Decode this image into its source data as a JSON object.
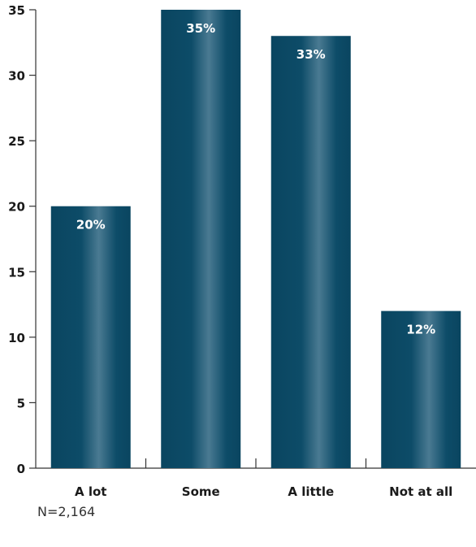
{
  "chart_data": {
    "type": "bar",
    "categories": [
      "A lot",
      "Some",
      "A little",
      "Not at all"
    ],
    "values": [
      20,
      35,
      33,
      12
    ],
    "data_labels": [
      "20%",
      "35%",
      "33%",
      "12%"
    ],
    "ylim": [
      0,
      35
    ],
    "yticks": [
      0,
      5,
      10,
      15,
      20,
      25,
      30,
      35
    ],
    "grid": false,
    "legend": "none",
    "bar_color": "#0b4a66",
    "bar_highlight": "#4f7f97"
  },
  "note": "N=2,164"
}
